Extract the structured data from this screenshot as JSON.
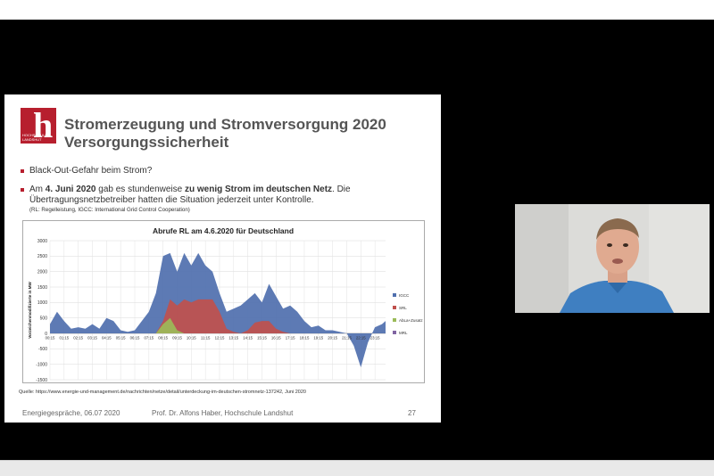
{
  "slide": {
    "logo": {
      "glyph": "h",
      "text_line1": "HOCHSCHULE",
      "text_line2": "LANDSHUT"
    },
    "title_line1": "Stromerzeugung und Stromversorgung 2020",
    "title_line2": "Versorgungssicherheit",
    "bullet1": "Black-Out-Gefahr beim Strom?",
    "bullet2": {
      "p1": "Am ",
      "b1": "4. Juni 2020",
      "p2": " gab es stundenweise ",
      "b2": "zu wenig Strom im deutschen Netz",
      "p3": ". Die Übertragungsnetzbetreiber hatten die Situation jederzeit unter Kontrolle."
    },
    "note": "(RL: Regelleistung, IGCC: International Grid Control Cooperation)",
    "source": "Quelle: https://www.energie-und-management.de/nachrichten/netze/detail/unterdeckung-im-deutschen-stromnetz-137242, Juni 2020",
    "footer_left": "Energiegespräche, 06.07 2020",
    "footer_mid": "Prof. Dr. Alfons Haber, Hochschule Landshut",
    "page_number": "27"
  },
  "chart_data": {
    "type": "area",
    "title": "Abrufe RL am 4.6.2020 für Deutschland",
    "ylabel": "Vorzeichenmodifizierte in MW",
    "ylim": [
      -1500,
      3000
    ],
    "yticks": [
      3000,
      2500,
      2000,
      1500,
      1000,
      500,
      0,
      -500,
      -1000,
      -1500
    ],
    "xticks": [
      "00:15",
      "01:15",
      "02:15",
      "03:15",
      "04:15",
      "05:15",
      "06:15",
      "07:15",
      "08:15",
      "09:15",
      "10:15",
      "11:15",
      "12:15",
      "13:15",
      "14:15",
      "15:15",
      "16:15",
      "17:15",
      "18:15",
      "19:15",
      "20:15",
      "21:15",
      "22:15",
      "23:15"
    ],
    "x_hours": [
      0,
      0.5,
      1,
      1.5,
      2,
      2.5,
      3,
      3.5,
      4,
      4.5,
      5,
      5.5,
      6,
      6.5,
      7,
      7.5,
      8,
      8.5,
      9,
      9.5,
      10,
      10.5,
      11,
      11.5,
      12,
      12.5,
      13,
      13.5,
      14,
      14.5,
      15,
      15.5,
      16,
      16.5,
      17,
      17.5,
      18,
      18.5,
      19,
      19.5,
      20,
      20.5,
      21,
      21.5,
      22,
      22.5,
      23,
      23.5,
      23.75
    ],
    "series": [
      {
        "name": "IGCC",
        "color": "#4f6fae",
        "values": [
          300,
          700,
          400,
          150,
          200,
          150,
          300,
          150,
          500,
          400,
          100,
          50,
          100,
          400,
          700,
          1300,
          2500,
          2600,
          2000,
          2600,
          2200,
          2600,
          2200,
          2000,
          1300,
          700,
          800,
          900,
          1100,
          1300,
          1000,
          1600,
          1200,
          800,
          900,
          700,
          400,
          200,
          250,
          100,
          100,
          50,
          0,
          -400,
          -1100,
          -300,
          200,
          300,
          400
        ]
      },
      {
        "name": "SRL",
        "color": "#c0504d",
        "values": [
          0,
          0,
          0,
          0,
          0,
          0,
          0,
          0,
          0,
          0,
          0,
          0,
          0,
          0,
          0,
          0,
          400,
          1100,
          900,
          1100,
          1000,
          1100,
          1100,
          1100,
          700,
          150,
          50,
          0,
          100,
          350,
          400,
          400,
          150,
          50,
          0,
          0,
          0,
          0,
          0,
          0,
          0,
          0,
          0,
          0,
          0,
          0,
          0,
          0,
          0
        ]
      },
      {
        "name": "AbLa+Zusatz",
        "color": "#9bbb59",
        "values": [
          0,
          0,
          0,
          0,
          0,
          0,
          0,
          0,
          0,
          0,
          0,
          0,
          0,
          0,
          0,
          0,
          300,
          500,
          100,
          0,
          0,
          0,
          0,
          0,
          0,
          0,
          0,
          0,
          0,
          0,
          0,
          0,
          0,
          0,
          0,
          0,
          0,
          0,
          0,
          0,
          0,
          0,
          0,
          0,
          0,
          0,
          0,
          0,
          0
        ]
      },
      {
        "name": "MRL",
        "color": "#8064a2",
        "values": [
          0,
          0,
          0,
          0,
          0,
          0,
          0,
          0,
          0,
          0,
          0,
          0,
          0,
          0,
          0,
          0,
          0,
          0,
          0,
          0,
          0,
          0,
          0,
          0,
          0,
          0,
          0,
          0,
          0,
          0,
          0,
          0,
          0,
          0,
          0,
          0,
          0,
          0,
          0,
          0,
          0,
          0,
          0,
          0,
          0,
          0,
          0,
          0,
          0
        ]
      }
    ],
    "legend_position": "right",
    "grid": true
  },
  "webcam": {
    "subject": "presenter-video"
  }
}
